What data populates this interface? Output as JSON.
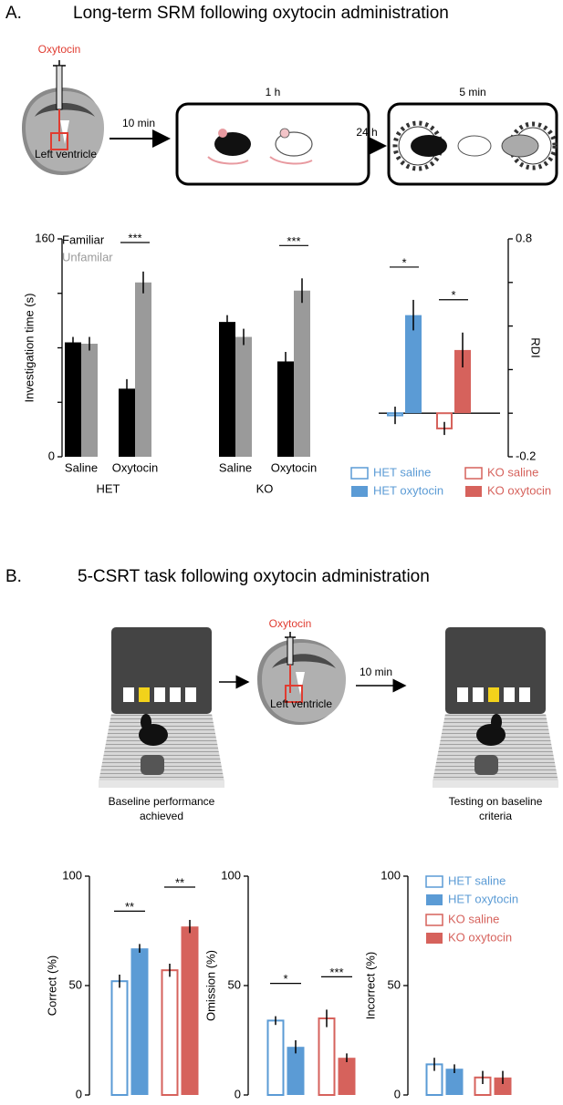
{
  "panels": [
    {
      "label": "A.",
      "title": "Long-term SRM following oxytocin administration",
      "diagram": {
        "drug": "Oxytocin",
        "site": "Left ventricle",
        "steps": [
          "10 min",
          "24 h"
        ],
        "durations": [
          "1 h",
          "5 min"
        ]
      }
    },
    {
      "label": "B.",
      "title": "5-CSRT task following oxytocin administration",
      "diagram": {
        "drug": "Oxytocin",
        "site": "Left ventricle",
        "step": "10 min",
        "before": [
          "Baseline performance",
          "achieved"
        ],
        "after": [
          "Testing on baseline",
          "criteria"
        ]
      }
    }
  ],
  "chart_data": [
    {
      "type": "bar",
      "y_label": "Investigation time (s)",
      "categories": [
        "Saline",
        "Oxytocin",
        "Saline",
        "Oxytocin"
      ],
      "groups": [
        "HET",
        "KO"
      ],
      "series": [
        {
          "name": "Familiar",
          "color": "#000000",
          "style": "filled",
          "values": [
            84,
            50,
            99,
            70
          ],
          "errors": [
            4,
            7,
            5,
            7
          ]
        },
        {
          "name": "Unfamilar",
          "color": "#9a9a9a",
          "style": "filled",
          "values": [
            83,
            128,
            88,
            122
          ],
          "errors": [
            5,
            8,
            6,
            9
          ]
        }
      ],
      "ylim": [
        0,
        160
      ],
      "yticks": [
        0,
        160
      ],
      "minor_yticks": [
        40,
        80,
        120
      ],
      "y_axis": "left",
      "legend": "text",
      "annotations": [
        {
          "text": "***",
          "category": 1
        },
        {
          "text": "***",
          "category": 3
        }
      ]
    },
    {
      "type": "bar",
      "y_label": "RDI",
      "categories": [
        null,
        null
      ],
      "series": [
        {
          "name": "HET saline",
          "color": "#5b9bd5",
          "style": "outline",
          "values": [
            -0.01,
            null
          ],
          "errors": [
            0.04,
            null
          ]
        },
        {
          "name": "HET oxytocin",
          "color": "#5b9bd5",
          "style": "filled",
          "values": [
            0.45,
            null
          ],
          "errors": [
            0.07,
            null
          ]
        },
        {
          "name": "KO saline",
          "color": "#d6625c",
          "style": "outline",
          "values": [
            null,
            -0.07
          ],
          "errors": [
            null,
            0.03
          ]
        },
        {
          "name": "KO oxytocin",
          "color": "#d6625c",
          "style": "filled",
          "values": [
            null,
            0.29
          ],
          "errors": [
            null,
            0.08
          ]
        }
      ],
      "ylim": [
        -0.2,
        0.8
      ],
      "yticks": [
        -0.2,
        0.8
      ],
      "minor_yticks": [
        0,
        0.2,
        0.4,
        0.6
      ],
      "y_axis": "right",
      "zero_line": true,
      "legend": "bottom",
      "annotations": [
        {
          "text": "*",
          "category": 0
        },
        {
          "text": "*",
          "category": 1
        }
      ]
    },
    {
      "type": "bar",
      "y_label": "Correct (%)",
      "categories": [
        null,
        null
      ],
      "series": [
        {
          "color": "#5b9bd5",
          "style": "outline",
          "values": [
            52,
            null
          ],
          "errors": [
            3,
            null
          ]
        },
        {
          "color": "#5b9bd5",
          "style": "filled",
          "values": [
            67,
            null
          ],
          "errors": [
            2,
            null
          ]
        },
        {
          "color": "#d6625c",
          "style": "outline",
          "values": [
            null,
            57
          ],
          "errors": [
            null,
            3
          ]
        },
        {
          "color": "#d6625c",
          "style": "filled",
          "values": [
            null,
            77
          ],
          "errors": [
            null,
            3
          ]
        }
      ],
      "ylim": [
        0,
        100
      ],
      "yticks": [
        0,
        50,
        100
      ],
      "y_axis": "left",
      "annotations": [
        {
          "text": "**",
          "category": 0
        },
        {
          "text": "**",
          "category": 1
        }
      ]
    },
    {
      "type": "bar",
      "y_label": "Omission (%)",
      "categories": [
        null,
        null
      ],
      "series": [
        {
          "color": "#5b9bd5",
          "style": "outline",
          "values": [
            34,
            null
          ],
          "errors": [
            2,
            null
          ]
        },
        {
          "color": "#5b9bd5",
          "style": "filled",
          "values": [
            22,
            null
          ],
          "errors": [
            3,
            null
          ]
        },
        {
          "color": "#d6625c",
          "style": "outline",
          "values": [
            null,
            35
          ],
          "errors": [
            null,
            4
          ]
        },
        {
          "color": "#d6625c",
          "style": "filled",
          "values": [
            null,
            17
          ],
          "errors": [
            null,
            2
          ]
        }
      ],
      "ylim": [
        0,
        100
      ],
      "yticks": [
        0,
        50,
        100
      ],
      "y_axis": "left",
      "annotations": [
        {
          "text": "*",
          "category": 0
        },
        {
          "text": "***",
          "category": 1
        }
      ]
    },
    {
      "type": "bar",
      "y_label": "Incorrect (%)",
      "categories": [
        null,
        null
      ],
      "series": [
        {
          "name": "HET saline",
          "color": "#5b9bd5",
          "style": "outline",
          "values": [
            14,
            null
          ],
          "errors": [
            3,
            null
          ]
        },
        {
          "name": "HET oxytocin",
          "color": "#5b9bd5",
          "style": "filled",
          "values": [
            12,
            null
          ],
          "errors": [
            2,
            null
          ]
        },
        {
          "name": "KO saline",
          "color": "#d6625c",
          "style": "outline",
          "values": [
            null,
            8
          ],
          "errors": [
            null,
            3
          ]
        },
        {
          "name": "KO oxytocin",
          "color": "#d6625c",
          "style": "filled",
          "values": [
            null,
            8
          ],
          "errors": [
            null,
            3
          ]
        }
      ],
      "ylim": [
        0,
        100
      ],
      "yticks": [
        0,
        50,
        100
      ],
      "y_axis": "left",
      "legend": "top-right"
    }
  ]
}
